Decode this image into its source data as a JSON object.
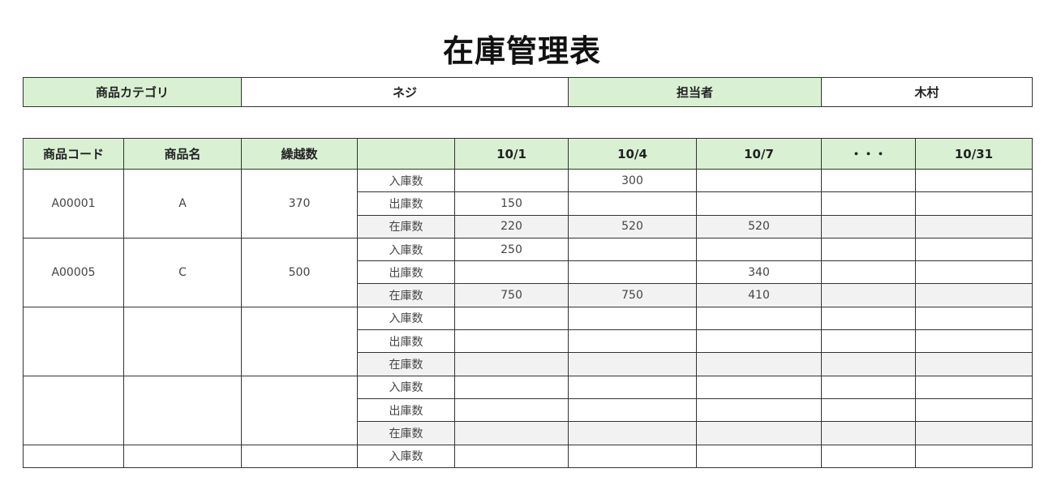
{
  "title": "在庫管理表",
  "info": {
    "category_label": "商品カテゴリ",
    "category_value": "ネジ",
    "person_label": "担当者",
    "person_value": "木村"
  },
  "headers": [
    "商品コード",
    "商品名",
    "繰越数",
    "",
    "10/1",
    "10/4",
    "10/7",
    "・・・",
    "10/31"
  ],
  "row_types": [
    "入庫数",
    "出庫数",
    "在庫数"
  ],
  "products": [
    {
      "code": "A00001",
      "name": "A",
      "carry": "370",
      "rows": [
        [
          "",
          "300",
          "",
          "",
          ""
        ],
        [
          "150",
          "",
          "",
          "",
          ""
        ],
        [
          "220",
          "520",
          "520",
          "",
          ""
        ]
      ]
    },
    {
      "code": "A00005",
      "name": "C",
      "carry": "500",
      "rows": [
        [
          "250",
          "",
          "",
          "",
          ""
        ],
        [
          "",
          "",
          "340",
          "",
          ""
        ],
        [
          "750",
          "750",
          "410",
          "",
          ""
        ]
      ]
    },
    {
      "code": "",
      "name": "",
      "carry": "",
      "rows": [
        [
          "",
          "",
          "",
          "",
          ""
        ],
        [
          "",
          "",
          "",
          "",
          ""
        ],
        [
          "",
          "",
          "",
          "",
          ""
        ]
      ]
    },
    {
      "code": "",
      "name": "",
      "carry": "",
      "rows": [
        [
          "",
          "",
          "",
          "",
          ""
        ],
        [
          "",
          "",
          "",
          "",
          ""
        ],
        [
          "",
          "",
          "",
          "",
          ""
        ]
      ]
    },
    {
      "code": "",
      "name": "",
      "carry": "",
      "rows": [
        [
          "",
          "",
          "",
          "",
          ""
        ]
      ]
    }
  ],
  "colors": {
    "header_green": "#d9f0d3",
    "stock_row_gray": "#f2f2f2"
  }
}
